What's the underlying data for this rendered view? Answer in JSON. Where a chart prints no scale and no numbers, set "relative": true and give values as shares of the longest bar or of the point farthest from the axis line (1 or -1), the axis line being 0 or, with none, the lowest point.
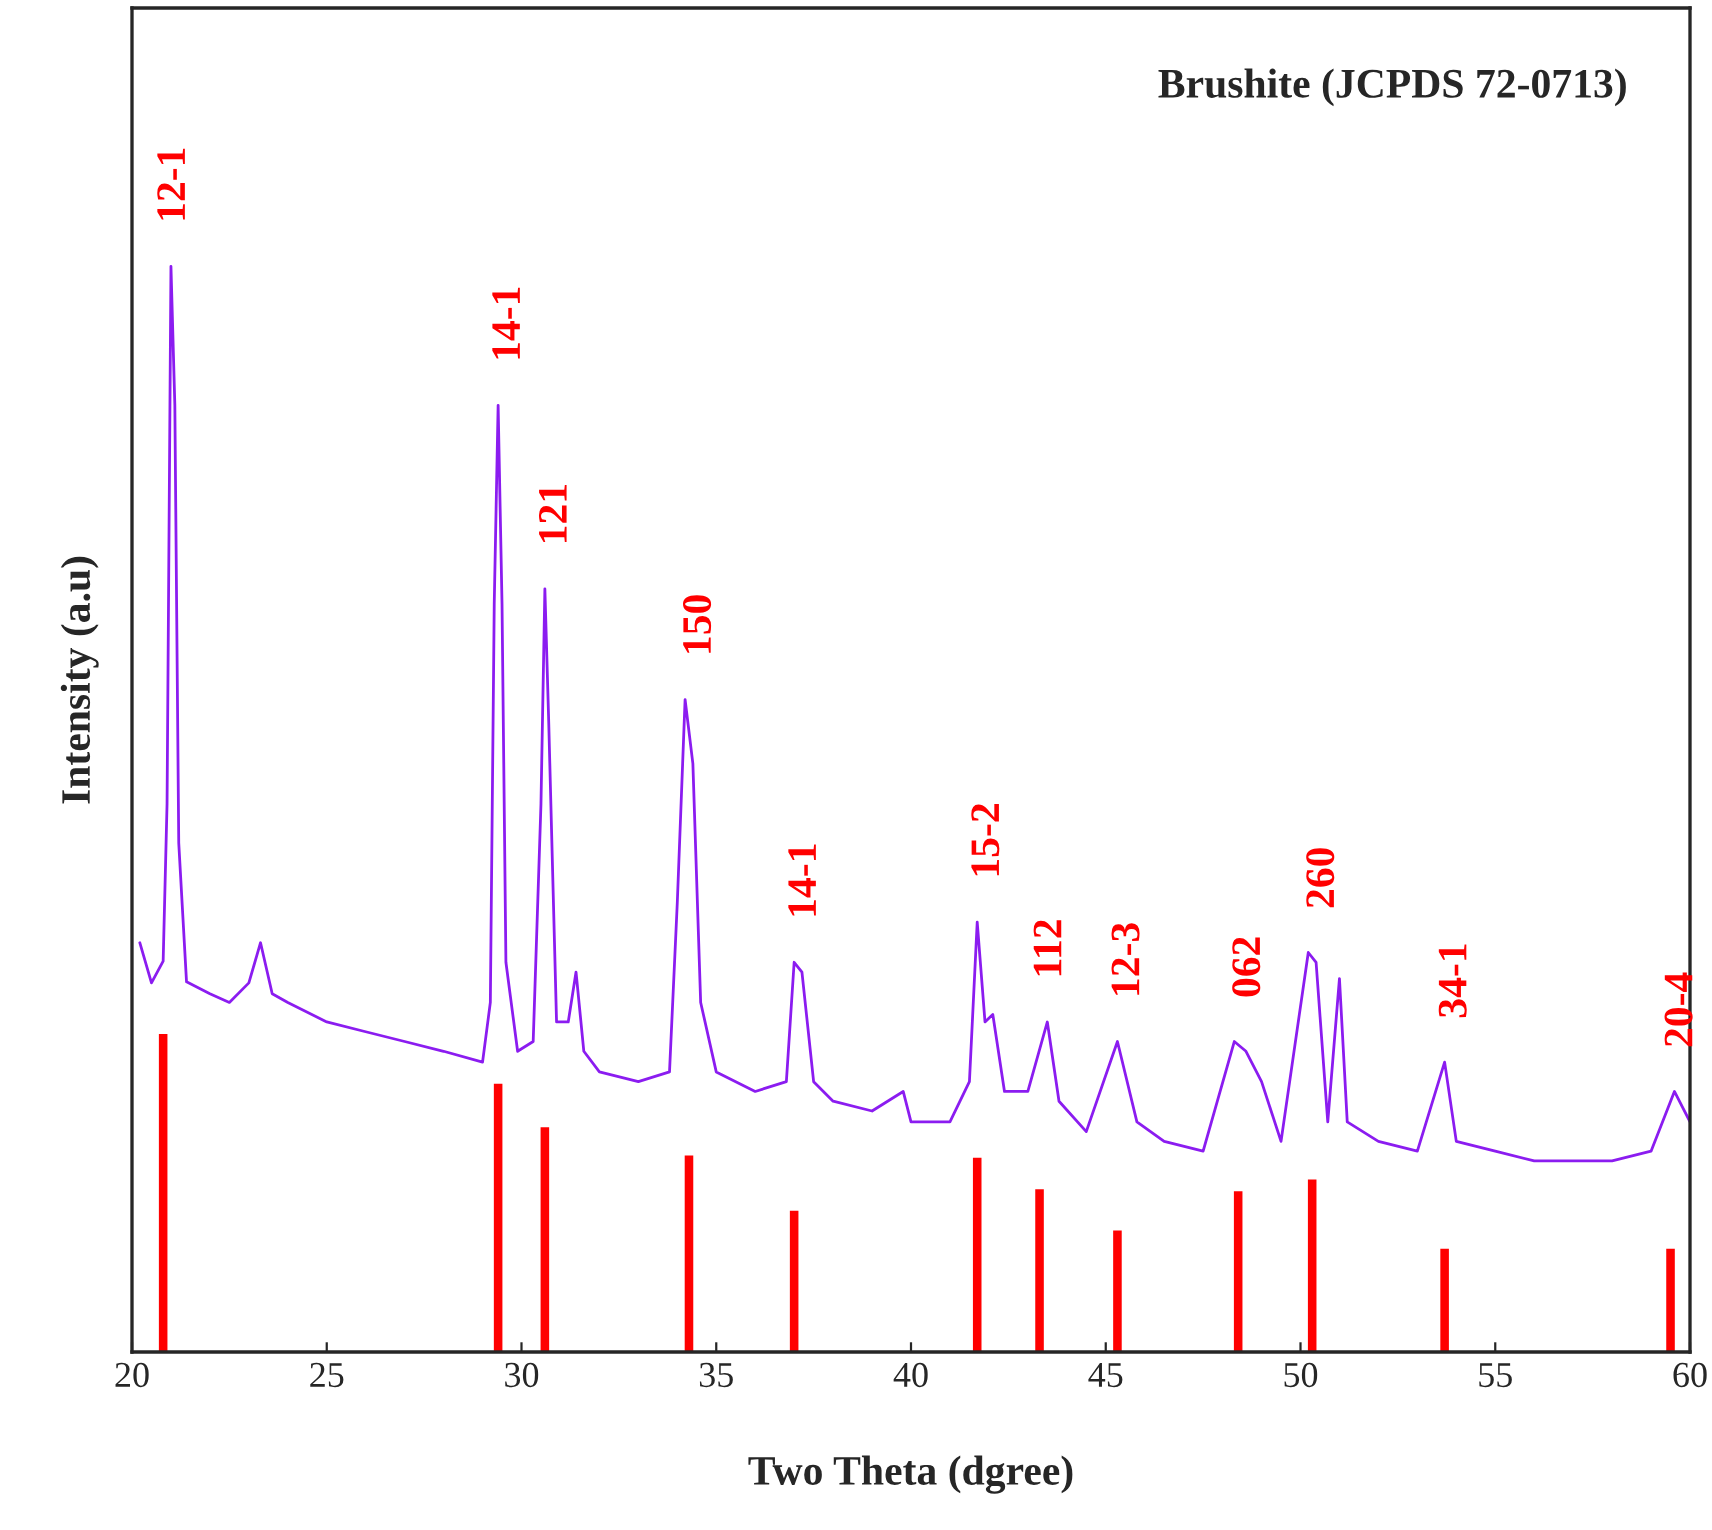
{
  "chart_data": {
    "type": "line",
    "relative": true,
    "xlabel": "Two Theta (dgree)",
    "ylabel": "Intensity (a.u)",
    "xlim": [
      20,
      60
    ],
    "xticks": [
      20,
      25,
      30,
      35,
      40,
      45,
      50,
      55,
      60
    ],
    "grid": false,
    "legend": false,
    "series": [
      {
        "color": "#8b1cf0",
        "x": [
          20.2,
          20.5,
          20.8,
          20.9,
          21.0,
          21.1,
          21.2,
          21.4,
          22,
          22.5,
          23,
          23.3,
          23.6,
          24,
          25,
          26,
          27,
          28,
          29,
          29.2,
          29.3,
          29.4,
          29.5,
          29.6,
          29.9,
          30.3,
          30.5,
          30.6,
          30.7,
          30.9,
          31.2,
          31.4,
          31.6,
          32,
          33,
          33.8,
          34.0,
          34.2,
          34.4,
          34.6,
          35,
          36,
          36.8,
          37.0,
          37.2,
          37.5,
          38,
          39,
          39.8,
          40,
          41,
          41.5,
          41.7,
          41.9,
          42.1,
          42.4,
          43,
          43.5,
          43.8,
          44.5,
          45.3,
          45.8,
          46.5,
          47.5,
          48.3,
          48.6,
          49,
          49.5,
          50.2,
          50.4,
          50.7,
          51.0,
          51.2,
          52,
          53,
          53.7,
          54,
          55,
          56,
          57,
          58,
          59,
          59.6,
          60
        ],
        "values": [
          0.377,
          0.34,
          0.36,
          0.505,
          1.0,
          0.872,
          0.469,
          0.341,
          0.33,
          0.322,
          0.34,
          0.377,
          0.33,
          0.322,
          0.304,
          0.295,
          0.286,
          0.277,
          0.267,
          0.322,
          0.689,
          0.872,
          0.689,
          0.359,
          0.277,
          0.286,
          0.505,
          0.703,
          0.579,
          0.304,
          0.304,
          0.35,
          0.277,
          0.258,
          0.249,
          0.258,
          0.414,
          0.601,
          0.542,
          0.322,
          0.258,
          0.24,
          0.249,
          0.359,
          0.35,
          0.249,
          0.231,
          0.222,
          0.24,
          0.212,
          0.212,
          0.249,
          0.396,
          0.304,
          0.311,
          0.24,
          0.24,
          0.304,
          0.231,
          0.203,
          0.286,
          0.212,
          0.194,
          0.185,
          0.286,
          0.277,
          0.249,
          0.194,
          0.368,
          0.359,
          0.212,
          0.344,
          0.212,
          0.194,
          0.185,
          0.267,
          0.194,
          0.185,
          0.176,
          0.176,
          0.176,
          0.185,
          0.24,
          0.212
        ]
      },
      {
        "type": "bar",
        "color": "#ff0000",
        "x": [
          20.8,
          29.4,
          30.6,
          34.3,
          37.0,
          41.7,
          43.3,
          45.3,
          48.4,
          50.3,
          53.7,
          59.5
        ],
        "values": [
          0.293,
          0.247,
          0.207,
          0.181,
          0.13,
          0.179,
          0.15,
          0.112,
          0.148,
          0.159,
          0.095,
          0.095
        ]
      }
    ],
    "annotations": [
      "12-1",
      "14-1",
      "121",
      "150",
      "14-1",
      "15-2",
      "112",
      "12-3",
      "062",
      "260",
      "34-1",
      "20-4",
      "Brushite (JCPDS 72-0713)"
    ]
  }
}
